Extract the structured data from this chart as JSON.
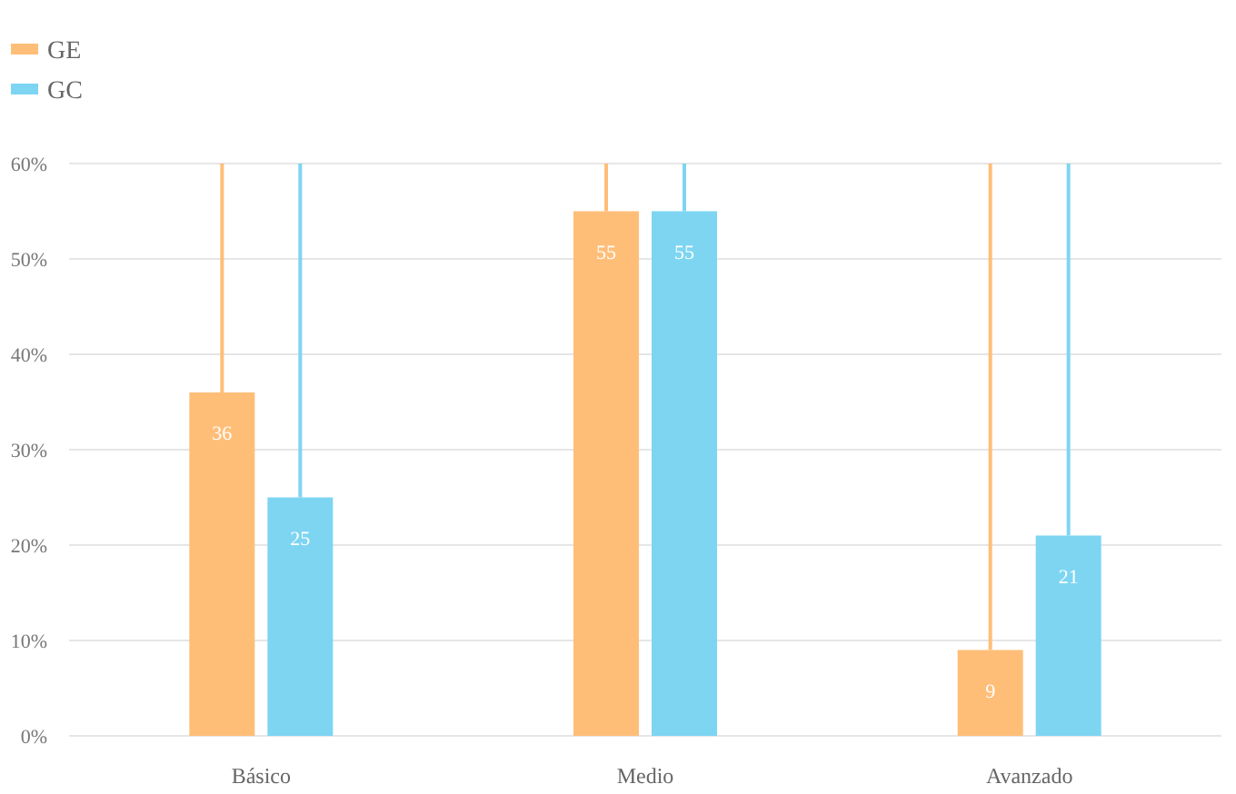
{
  "chart_data": {
    "type": "bar",
    "categories": [
      "Básico",
      "Medio",
      "Avanzado"
    ],
    "series": [
      {
        "name": "GE",
        "color": "#ffbe78",
        "values": [
          36,
          55,
          9
        ],
        "errors": [
          [
            36,
            60
          ],
          [
            55,
            60
          ],
          [
            9,
            60
          ]
        ]
      },
      {
        "name": "GC",
        "color": "#7dd5f2",
        "values": [
          25,
          55,
          21
        ],
        "errors": [
          [
            25,
            60
          ],
          [
            55,
            60
          ],
          [
            21,
            60
          ]
        ]
      }
    ],
    "ylim": [
      0,
      60
    ],
    "yticks": [
      {
        "value": 0,
        "label": "0%"
      },
      {
        "value": 10,
        "label": "10%"
      },
      {
        "value": 20,
        "label": "20%"
      },
      {
        "value": 30,
        "label": "30%"
      },
      {
        "value": 40,
        "label": "40%"
      },
      {
        "value": 50,
        "label": "50%"
      },
      {
        "value": 60,
        "label": "60%"
      }
    ],
    "grid": "y",
    "legend": "top left",
    "data_labels": true
  }
}
